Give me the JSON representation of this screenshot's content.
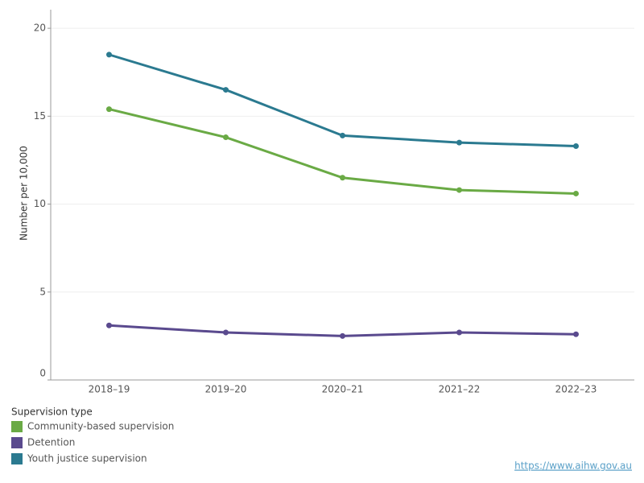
{
  "chart_data": {
    "type": "line",
    "y_label": "Number per 10,000",
    "categories": [
      "2018–19",
      "2019–20",
      "2020–21",
      "2021–22",
      "2022–23"
    ],
    "series": [
      {
        "name": "Community-based supervision",
        "color": "#6aaa45",
        "values": [
          15.4,
          13.8,
          11.5,
          10.8,
          10.6
        ]
      },
      {
        "name": "Detention",
        "color": "#5a4a8e",
        "values": [
          3.1,
          2.7,
          2.5,
          2.7,
          2.6
        ]
      },
      {
        "name": "Youth justice supervision",
        "color": "#2b7a90",
        "values": [
          18.5,
          16.5,
          13.9,
          13.5,
          13.3
        ]
      }
    ],
    "ylim": [
      0,
      20.6
    ],
    "yticks": [
      0,
      5,
      10,
      15,
      20
    ],
    "grid": true,
    "legend_title": "Supervision type",
    "legend_position": "bottom-left",
    "source": "https://www.aihw.gov.au"
  }
}
